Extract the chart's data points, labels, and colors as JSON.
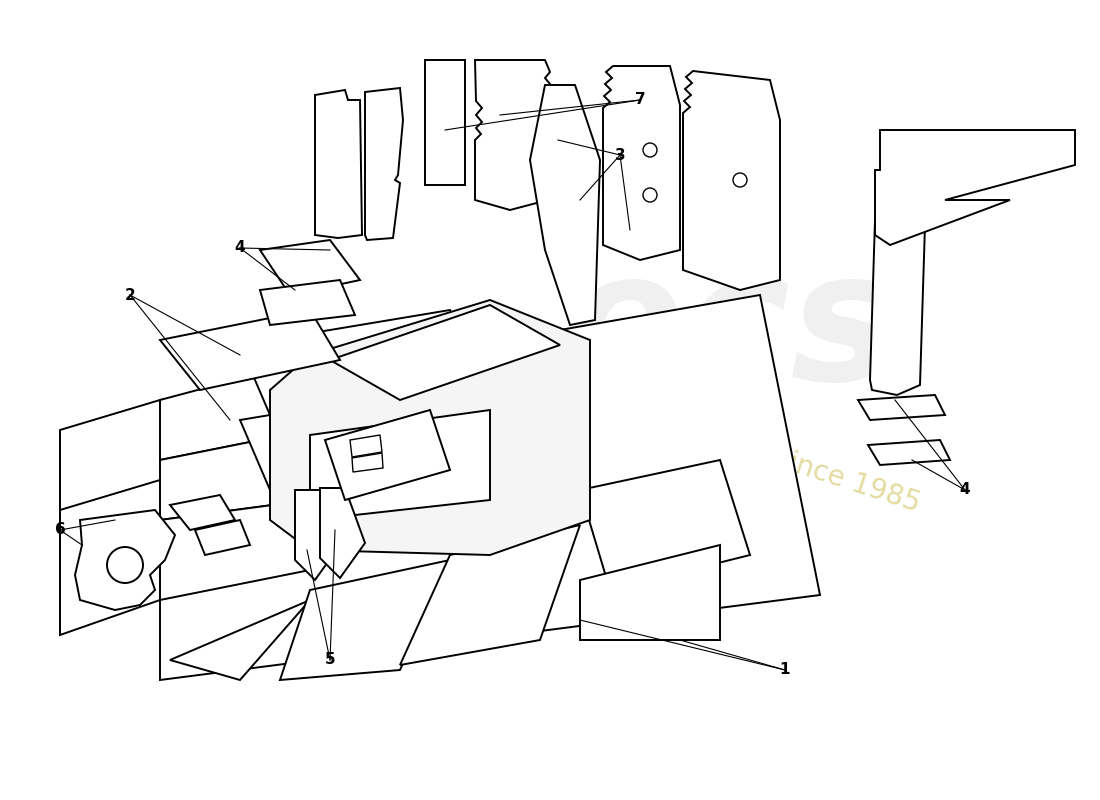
{
  "bg": "#ffffff",
  "lc": "#000000",
  "lw": 1.4,
  "label_fs": 11,
  "wm_ecs_color": "#cccccc",
  "wm_ecs_alpha": 0.28,
  "wm_text_color": "#c8b840",
  "wm_text_alpha": 0.5
}
